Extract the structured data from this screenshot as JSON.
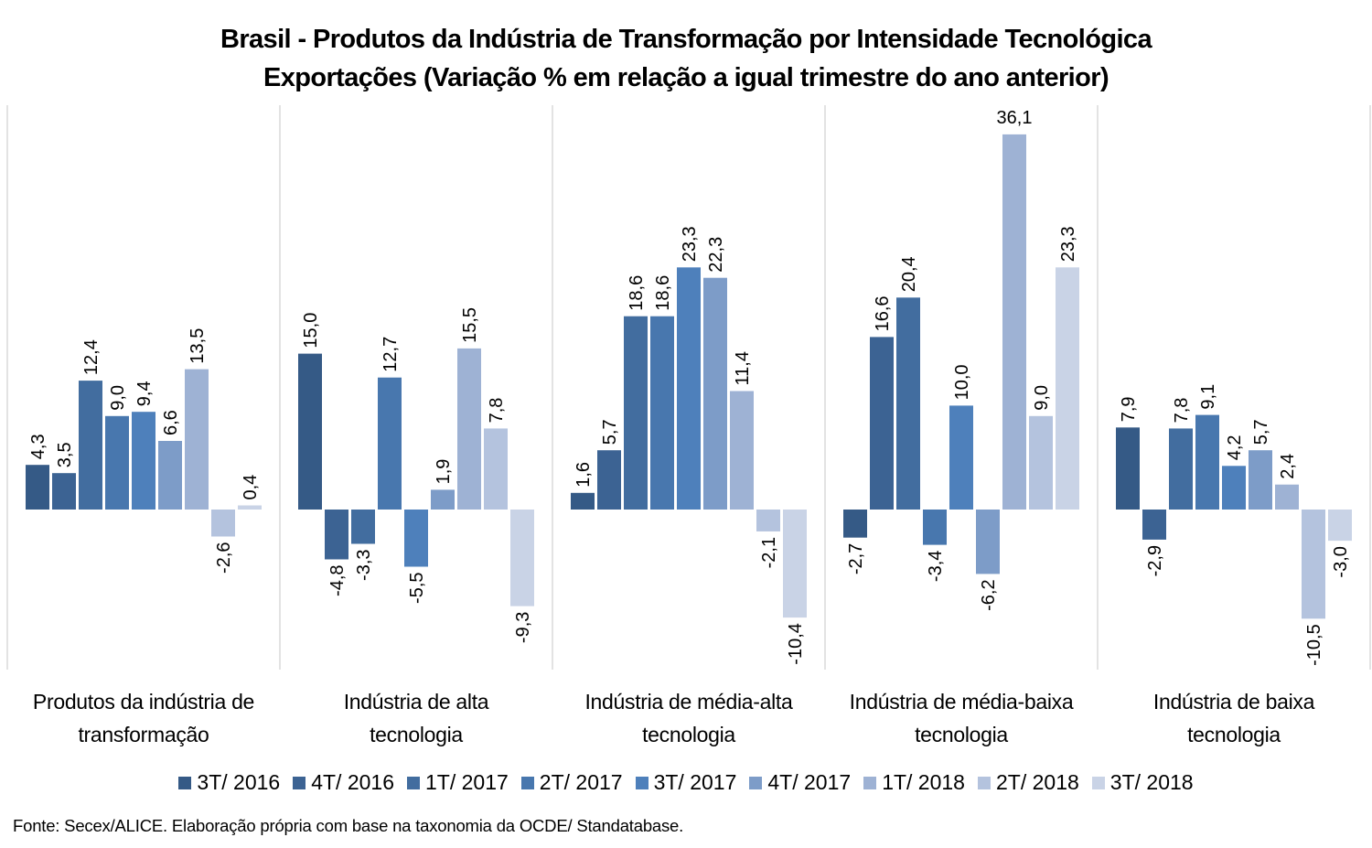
{
  "chart_data": {
    "type": "bar",
    "title": "Brasil - Produtos da Indústria de Transformação por Intensidade Tecnológica",
    "subtitle": "Exportações (Variação % em relação a igual trimestre do ano anterior)",
    "xlabel": "",
    "ylabel": "",
    "ylim": [
      -11,
      37
    ],
    "grid": false,
    "legend_position": "bottom",
    "categories": [
      "Produtos da indústria de transformação",
      "Indústria de alta tecnologia",
      "Indústria de média-alta tecnologia",
      "Indústria de média-baixa tecnologia",
      "Indústria de baixa tecnologia"
    ],
    "category_lines": [
      [
        "Produtos da indústria de",
        "transformação"
      ],
      [
        "Indústria de alta",
        "tecnologia"
      ],
      [
        "Indústria de média-alta",
        "tecnologia"
      ],
      [
        "Indústria de média-baixa",
        "tecnologia"
      ],
      [
        "Indústria de baixa",
        "tecnologia"
      ]
    ],
    "series": [
      {
        "name": "3T/ 2016",
        "color": "#355a86",
        "values": [
          4.3,
          15.0,
          1.6,
          -2.7,
          7.9
        ],
        "labels": [
          "4,3",
          "15,0",
          "1,6",
          "-2,7",
          "7,9"
        ]
      },
      {
        "name": "4T/ 2016",
        "color": "#3c6393",
        "values": [
          3.5,
          -4.8,
          5.7,
          16.6,
          -2.9
        ],
        "labels": [
          "3,5",
          "-4,8",
          "5,7",
          "16,6",
          "-2,9"
        ]
      },
      {
        "name": "1T/ 2017",
        "color": "#426d9f",
        "values": [
          12.4,
          -3.3,
          18.6,
          20.4,
          7.8
        ],
        "labels": [
          "12,4",
          "-3,3",
          "18,6",
          "20,4",
          "7,8"
        ]
      },
      {
        "name": "2T/ 2017",
        "color": "#4877ae",
        "values": [
          9.0,
          12.7,
          18.6,
          -3.4,
          9.1
        ],
        "labels": [
          "9,0",
          "12,7",
          "18,6",
          "-3,4",
          "9,1"
        ]
      },
      {
        "name": "3T/ 2017",
        "color": "#4e80bb",
        "values": [
          9.4,
          -5.5,
          23.3,
          10.0,
          4.2
        ],
        "labels": [
          "9,4",
          "-5,5",
          "23,3",
          "10,0",
          "4,2"
        ]
      },
      {
        "name": "4T/ 2017",
        "color": "#7d9cc8",
        "values": [
          6.6,
          1.9,
          22.3,
          -6.2,
          5.7
        ],
        "labels": [
          "6,6",
          "1,9",
          "22,3",
          "-6,2",
          "5,7"
        ]
      },
      {
        "name": "1T/ 2018",
        "color": "#9eb2d4",
        "values": [
          13.5,
          15.5,
          11.4,
          36.1,
          2.4
        ],
        "labels": [
          "13,5",
          "15,5",
          "11,4",
          "36,1",
          "2,4"
        ]
      },
      {
        "name": "2T/ 2018",
        "color": "#b4c3de",
        "values": [
          -2.6,
          7.8,
          -2.1,
          9.0,
          -10.5
        ],
        "labels": [
          "-2,6",
          "7,8",
          "-2,1",
          "9,0",
          "-10,5"
        ]
      },
      {
        "name": "3T/ 2018",
        "color": "#c9d3e6",
        "values": [
          0.4,
          -9.3,
          -10.4,
          23.3,
          -3.0
        ],
        "labels": [
          "0,4",
          "-9,3",
          "-10,4",
          "23,3",
          "-3,0"
        ]
      }
    ],
    "special_label_orientation": {
      "series": 6,
      "category": 3,
      "orientation": "horizontal"
    }
  },
  "footer": {
    "source": "Fonte: Secex/ALICE. Elaboração própria com base na taxonomia da OCDE/ Standatabase."
  }
}
